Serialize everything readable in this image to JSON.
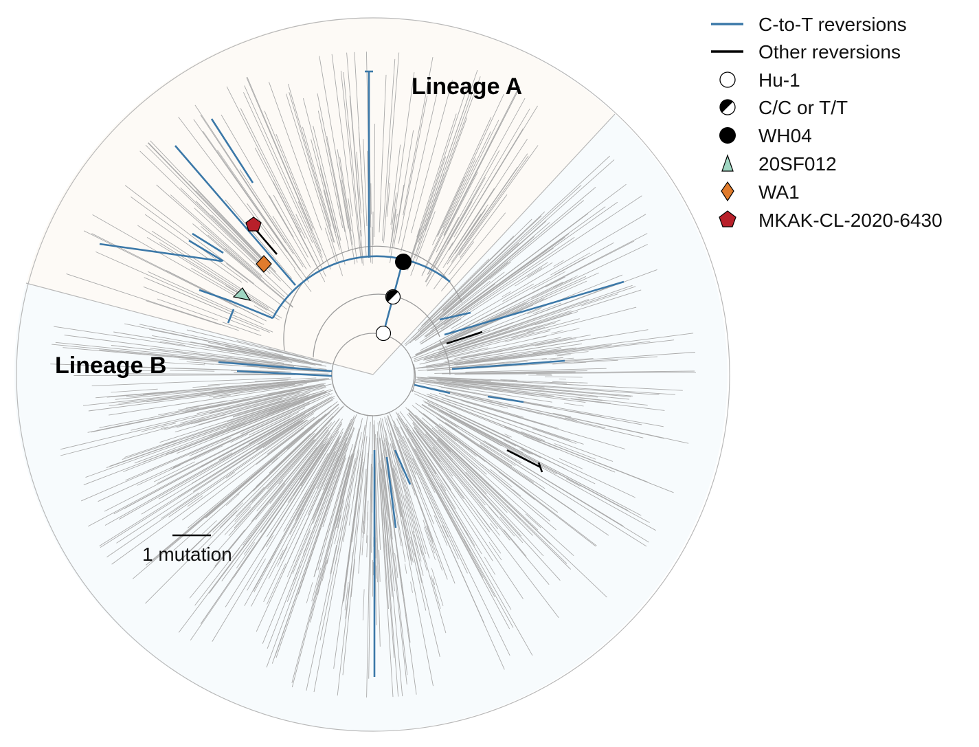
{
  "figure": {
    "lineage_a_label": "Lineage A",
    "lineage_b_label": "Lineage B",
    "scale_bar_label": "1 mutation"
  },
  "legend": {
    "items": [
      {
        "key": "c-to-t",
        "label": "C-to-T reversions",
        "symbol": "line",
        "color": "#3b78a8"
      },
      {
        "key": "other",
        "label": "Other reversions",
        "symbol": "line",
        "color": "#000000"
      },
      {
        "key": "hu1",
        "label": "Hu-1",
        "symbol": "circle-open",
        "color": "#ffffff"
      },
      {
        "key": "cc-tt",
        "label": "C/C or T/T",
        "symbol": "circle-half",
        "color": "#000000"
      },
      {
        "key": "wh04",
        "label": "WH04",
        "symbol": "circle-filled",
        "color": "#000000"
      },
      {
        "key": "20sf012",
        "label": "20SF012",
        "symbol": "triangle",
        "color": "#9fd6c2"
      },
      {
        "key": "wa1",
        "label": "WA1",
        "symbol": "diamond",
        "color": "#e07b2c"
      },
      {
        "key": "mkak",
        "label": "MKAK-CL-2020-6430",
        "symbol": "pentagon",
        "color": "#b8202a"
      }
    ]
  },
  "colors": {
    "lineage_a_bg": "#fdfaf6",
    "lineage_b_bg": "#f7fbfd",
    "branch_gray": "#a9a9a9",
    "c_to_t_blue": "#3b78a8",
    "other_black": "#000000"
  }
}
